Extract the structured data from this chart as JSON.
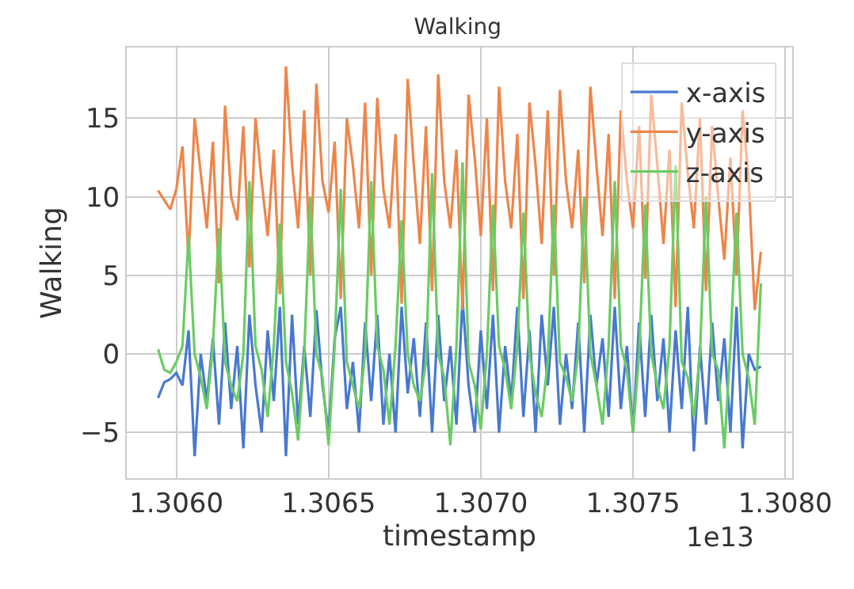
{
  "chart_data": {
    "type": "line",
    "title": "Walking",
    "xlabel": "timestamp",
    "ylabel": "Walking",
    "annotations": [
      "1e13"
    ],
    "x": [
      1.30594,
      1.30596,
      1.30598,
      1.306,
      1.30602,
      1.30604,
      1.30606,
      1.30608,
      1.3061,
      1.30612,
      1.30614,
      1.30616,
      1.30618,
      1.3062,
      1.30622,
      1.30624,
      1.30626,
      1.30628,
      1.3063,
      1.30632,
      1.30634,
      1.30636,
      1.30638,
      1.3064,
      1.30642,
      1.30644,
      1.30646,
      1.30648,
      1.3065,
      1.30652,
      1.30654,
      1.30656,
      1.30658,
      1.3066,
      1.30662,
      1.30664,
      1.30666,
      1.30668,
      1.3067,
      1.30672,
      1.30674,
      1.30676,
      1.30678,
      1.3068,
      1.30682,
      1.30684,
      1.30686,
      1.30688,
      1.3069,
      1.30692,
      1.30694,
      1.30696,
      1.30698,
      1.307,
      1.30702,
      1.30704,
      1.30706,
      1.30708,
      1.3071,
      1.30712,
      1.30714,
      1.30716,
      1.30718,
      1.3072,
      1.30722,
      1.30724,
      1.30726,
      1.30728,
      1.3073,
      1.30732,
      1.30734,
      1.30736,
      1.30738,
      1.3074,
      1.30742,
      1.30744,
      1.30746,
      1.30748,
      1.3075,
      1.30752,
      1.30754,
      1.30756,
      1.30758,
      1.3076,
      1.30762,
      1.30764,
      1.30766,
      1.30768,
      1.3077,
      1.30772,
      1.30774,
      1.30776,
      1.30778,
      1.3078,
      1.30782,
      1.30784,
      1.30786,
      1.30788,
      1.3079,
      1.30792
    ],
    "series": [
      {
        "name": "x-axis",
        "color": "#4878d0",
        "values": [
          -2.8,
          -1.8,
          -1.6,
          -1.2,
          -2.0,
          1.5,
          -6.5,
          0.0,
          -3.0,
          1.0,
          -4.5,
          2.0,
          -3.5,
          0.5,
          -6.0,
          2.5,
          -2.0,
          -5.0,
          1.5,
          -3.0,
          3.0,
          -6.5,
          2.5,
          -4.5,
          0.5,
          -4.0,
          2.8,
          -2.0,
          -5.0,
          1.0,
          3.0,
          -3.5,
          -0.5,
          -5.0,
          2.0,
          -3.0,
          2.5,
          -4.5,
          0.0,
          -5.0,
          3.0,
          -2.5,
          1.0,
          -4.0,
          2.0,
          -5.0,
          2.5,
          -3.0,
          0.5,
          -4.5,
          3.5,
          -2.0,
          -5.0,
          1.5,
          -3.5,
          2.5,
          -5.0,
          0.5,
          -3.0,
          3.0,
          -4.0,
          1.5,
          -5.0,
          2.5,
          -2.0,
          3.0,
          -4.5,
          0.0,
          -3.5,
          2.0,
          -5.0,
          2.5,
          -2.0,
          1.0,
          -4.0,
          3.0,
          -3.5,
          0.5,
          -5.0,
          2.0,
          -4.0,
          2.5,
          -3.0,
          1.0,
          -5.0,
          1.5,
          -3.5,
          3.0,
          -6.2,
          0.5,
          -4.5,
          2.0,
          -3.0,
          1.0,
          -5.0,
          3.0,
          -6.0,
          0.0,
          -1.0,
          -0.8
        ]
      },
      {
        "name": "y-axis",
        "color": "#ee854a",
        "values": [
          10.4,
          9.8,
          9.2,
          10.5,
          13.2,
          6.0,
          15.0,
          11.5,
          8.0,
          13.5,
          4.5,
          15.8,
          10.0,
          8.5,
          14.5,
          5.5,
          15.0,
          11.0,
          7.5,
          13.0,
          3.8,
          18.3,
          12.0,
          8.0,
          15.5,
          5.0,
          17.2,
          11.0,
          9.0,
          13.5,
          3.5,
          15.0,
          12.0,
          8.0,
          16.0,
          5.0,
          16.3,
          10.5,
          8.0,
          14.0,
          3.2,
          17.5,
          12.0,
          7.0,
          14.5,
          4.0,
          17.8,
          11.0,
          8.0,
          13.0,
          2.8,
          16.5,
          12.5,
          7.5,
          15.0,
          4.0,
          17.0,
          11.0,
          8.0,
          14.0,
          3.5,
          16.0,
          12.0,
          7.0,
          15.5,
          5.0,
          16.8,
          11.0,
          8.0,
          13.0,
          4.5,
          17.0,
          12.0,
          7.5,
          14.0,
          3.5,
          15.5,
          11.0,
          8.0,
          14.5,
          4.8,
          16.5,
          12.0,
          7.0,
          13.0,
          3.0,
          16.0,
          11.5,
          8.0,
          15.0,
          4.0,
          14.5,
          10.0,
          6.0,
          12.5,
          5.0,
          15.5,
          11.0,
          2.8,
          6.5
        ]
      },
      {
        "name": "z-axis",
        "color": "#6acc64",
        "values": [
          0.3,
          -1.0,
          -1.2,
          -0.5,
          0.5,
          7.5,
          0.0,
          -1.5,
          -3.5,
          0.5,
          8.0,
          -0.5,
          -2.0,
          -3.0,
          0.0,
          11.0,
          0.5,
          -1.0,
          -4.0,
          0.5,
          8.3,
          -0.5,
          -2.5,
          -5.5,
          0.0,
          10.0,
          0.0,
          -1.5,
          -5.8,
          0.5,
          10.5,
          -0.5,
          -2.0,
          -3.5,
          0.0,
          11.0,
          0.5,
          -1.0,
          -4.5,
          0.5,
          8.5,
          0.0,
          -2.0,
          -3.0,
          -0.5,
          11.5,
          0.0,
          -1.5,
          -5.8,
          0.5,
          12.2,
          -0.5,
          -2.0,
          -4.8,
          0.0,
          9.5,
          0.5,
          -1.0,
          -3.5,
          0.5,
          9.0,
          0.0,
          -2.5,
          -4.0,
          -0.5,
          9.5,
          -0.5,
          -1.5,
          -3.0,
          0.0,
          10.0,
          0.0,
          -2.0,
          -4.5,
          0.5,
          11.0,
          0.5,
          -1.0,
          -5.0,
          0.0,
          9.5,
          0.0,
          -2.0,
          -3.5,
          0.5,
          12.0,
          -0.5,
          -1.5,
          -4.0,
          0.0,
          10.0,
          0.0,
          -1.0,
          -6.0,
          0.5,
          9.0,
          0.0,
          -1.5,
          -4.5,
          4.5
        ]
      }
    ],
    "xlim": [
      1.305837,
      1.308023
    ],
    "xticks": [
      {
        "value": 1.306,
        "label": "1.3060"
      },
      {
        "value": 1.3065,
        "label": "1.3065"
      },
      {
        "value": 1.307,
        "label": "1.3070"
      },
      {
        "value": 1.3075,
        "label": "1.3075"
      },
      {
        "value": 1.308,
        "label": "1.3080"
      }
    ],
    "ylim": [
      -7.9,
      19.5
    ],
    "yticks": [
      {
        "value": -5,
        "label": "−5"
      },
      0,
      5,
      10,
      15
    ],
    "grid": true,
    "legend": "top right",
    "marker": "none",
    "line_style": "solid"
  }
}
